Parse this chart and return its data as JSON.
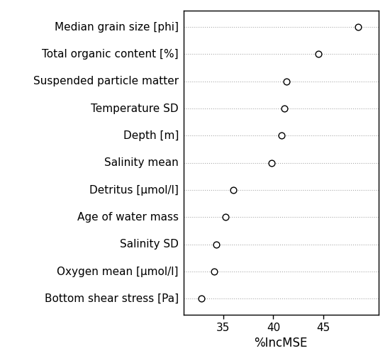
{
  "categories": [
    "Median grain size [phi]",
    "Total organic content [%]",
    "Suspended particle matter",
    "Temperature SD",
    "Depth [m]",
    "Salinity mean",
    "Detritus [μmol/l]",
    "Age of water mass",
    "Salinity SD",
    "Oxygen mean [μmol/l]",
    "Bottom shear stress [Pa]"
  ],
  "values": [
    48.5,
    44.5,
    41.3,
    41.1,
    40.8,
    39.8,
    36.0,
    35.2,
    34.3,
    34.1,
    32.8
  ],
  "xlabel": "%IncMSE",
  "xlim": [
    31.0,
    50.5
  ],
  "xticks": [
    35,
    40,
    45
  ],
  "dot_color": "white",
  "dot_edgecolor": "black",
  "dot_size": 40,
  "dot_linewidth": 1.0,
  "grid_color": "#aaaaaa",
  "grid_linestyle": "dotted",
  "grid_linewidth": 0.8,
  "spine_color": "black",
  "label_fontsize": 11,
  "tick_fontsize": 11,
  "xlabel_fontsize": 12,
  "background_color": "white"
}
